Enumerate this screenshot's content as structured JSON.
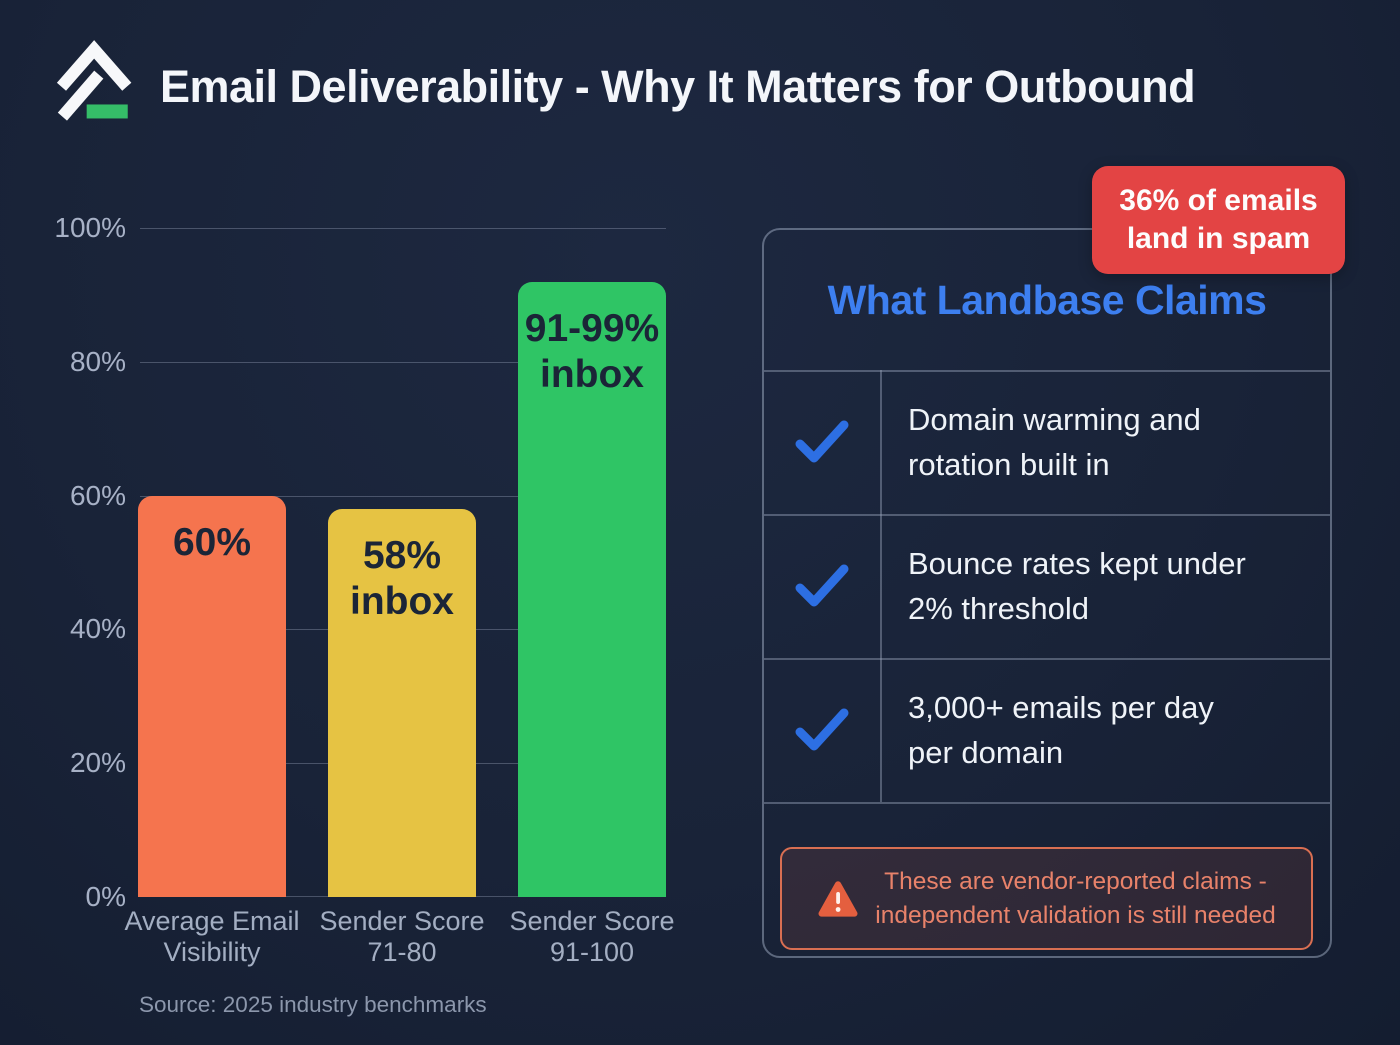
{
  "header": {
    "title": "Email Deliverability - Why It Matters for Outbound"
  },
  "colors": {
    "background": "#192338",
    "accent_blue": "#3d7ff0",
    "check_blue": "#2d6fe3",
    "badge_red": "#e34444",
    "warning_border": "#d96f52",
    "warning_text": "#e8826a",
    "warning_icon_orange": "#e45f3f",
    "logo_green": "#35bd68",
    "bar_orange": "#f5744e",
    "bar_yellow": "#e6c343",
    "bar_green": "#2fc565"
  },
  "chart_data": {
    "type": "bar",
    "title": "",
    "xlabel": "",
    "ylabel": "",
    "ylim": [
      0,
      100
    ],
    "grid": true,
    "categories": [
      "Average Email Visibility",
      "Sender Score 71-80",
      "Sender Score 91-100"
    ],
    "category_lines": [
      [
        "Average Email",
        "Visibility"
      ],
      [
        "Sender Score",
        "71-80"
      ],
      [
        "Sender Score",
        "91-100"
      ]
    ],
    "values": [
      60,
      58,
      92
    ],
    "bar_label_lines": [
      [
        "60%"
      ],
      [
        "58%",
        "inbox"
      ],
      [
        "91-99%",
        "inbox"
      ]
    ],
    "bar_colors": [
      "#f5744e",
      "#e6c343",
      "#2fc565"
    ],
    "yticks": [
      0,
      20,
      40,
      60,
      80,
      100
    ],
    "ytick_labels": [
      "0%",
      "20%",
      "40%",
      "60%",
      "80%",
      "100%"
    ],
    "source": "Source: 2025 industry benchmarks"
  },
  "spam_badge": {
    "lines": [
      "36% of emails",
      "land in spam"
    ]
  },
  "panel": {
    "title": "What Landbase Claims",
    "claims": [
      {
        "icon": "check",
        "lines": [
          "Domain warming and",
          "rotation built in"
        ]
      },
      {
        "icon": "check",
        "lines": [
          "Bounce rates kept under",
          "2% threshold"
        ]
      },
      {
        "icon": "check",
        "lines": [
          "3,000+ emails per day",
          "per domain"
        ]
      }
    ],
    "warning": {
      "lines": [
        "These are vendor-reported claims -",
        "independent validation is still needed"
      ]
    }
  }
}
